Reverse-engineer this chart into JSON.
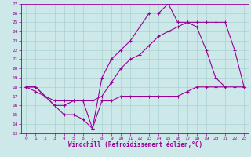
{
  "xlabel": "Windchill (Refroidissement éolien,°C)",
  "background_color": "#cce8e8",
  "grid_color": "#aad0d0",
  "line_color": "#990099",
  "xlim": [
    -0.5,
    23.5
  ],
  "ylim": [
    13,
    27
  ],
  "xticks": [
    0,
    1,
    2,
    3,
    4,
    5,
    6,
    7,
    8,
    9,
    10,
    11,
    12,
    13,
    14,
    15,
    16,
    17,
    18,
    19,
    20,
    21,
    22,
    23
  ],
  "yticks": [
    13,
    14,
    15,
    16,
    17,
    18,
    19,
    20,
    21,
    22,
    23,
    24,
    25,
    26,
    27
  ],
  "line1_x": [
    0,
    1,
    2,
    3,
    4,
    5,
    6,
    7,
    8,
    9,
    10,
    11,
    12,
    13,
    14,
    15,
    16,
    17,
    18,
    19,
    20,
    21
  ],
  "line1_y": [
    18,
    18,
    17,
    16,
    15,
    15,
    14.5,
    13.5,
    19,
    21,
    22,
    23,
    24.5,
    26,
    26,
    27,
    25,
    25,
    24.5,
    22,
    19,
    18
  ],
  "line2_x": [
    0,
    1,
    2,
    3,
    4,
    5,
    6,
    7,
    8,
    9,
    10,
    11,
    12,
    13,
    14,
    15,
    16,
    17,
    18,
    19,
    20,
    21,
    22,
    23
  ],
  "line2_y": [
    18,
    18,
    17,
    16.5,
    16.5,
    16.5,
    16.5,
    16.5,
    17,
    18.5,
    20,
    21,
    21.5,
    22.5,
    23.5,
    24,
    24.5,
    25,
    25,
    25,
    25,
    25,
    22,
    18
  ],
  "line3_x": [
    0,
    1,
    2,
    3,
    4,
    5,
    6,
    7,
    8,
    9,
    10,
    11,
    12,
    13,
    14,
    15,
    16,
    17,
    18,
    19,
    20,
    21,
    22,
    23
  ],
  "line3_y": [
    18,
    17.5,
    17,
    16,
    16,
    16.5,
    16.5,
    13.5,
    16.5,
    16.5,
    17,
    17,
    17,
    17,
    17,
    17,
    17,
    17.5,
    18,
    18,
    18,
    18,
    18,
    18
  ]
}
